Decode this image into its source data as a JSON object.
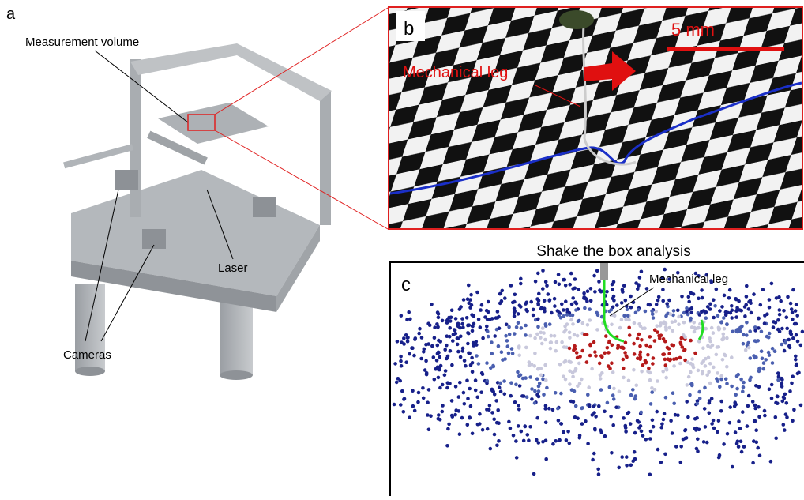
{
  "panels": [
    {
      "label": "a",
      "annotations": [
        "Measurement volume",
        "Laser",
        "Cameras"
      ]
    },
    {
      "label": "b",
      "annotations": [
        "Mechanical leg"
      ],
      "scale_bar": "5 mm"
    },
    {
      "label": "c",
      "title": "Shake the box analysis",
      "annotations": [
        "Mechanical leg"
      ]
    }
  ]
}
